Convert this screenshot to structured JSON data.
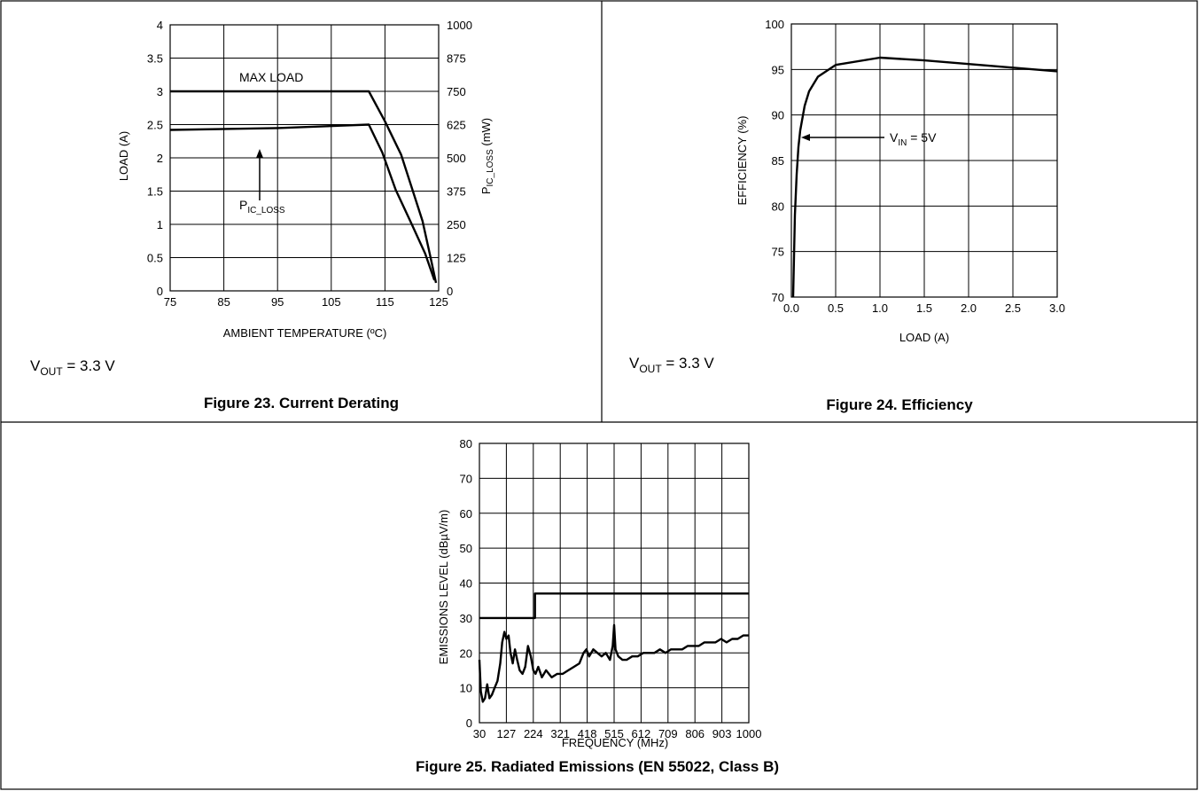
{
  "figures": {
    "fig23": {
      "caption": "Figure 23. Current Derating",
      "note_main": "V",
      "note_sub": "OUT",
      "note_rest": " = 3.3 V"
    },
    "fig24": {
      "caption": "Figure 24. Efficiency",
      "note_main": "V",
      "note_sub": "OUT",
      "note_rest": " = 3.3 V"
    },
    "fig25": {
      "caption": "Figure 25. Radiated Emissions (EN 55022, Class B)"
    }
  },
  "annotations": {
    "max_load": "MAX LOAD",
    "pic_main": "P",
    "pic_sub": "IC_LOSS",
    "vin_main": "V",
    "vin_sub": "IN",
    "vin_rest": " = 5V",
    "yr_main": "P",
    "yr_sub": "IC_LOSS",
    "yr_rest": " (mW)"
  },
  "chart_data": [
    {
      "id": "fig23",
      "type": "line",
      "xlabel": "AMBIENT TEMPERATURE (ºC)",
      "ylabel": "LOAD (A)",
      "xlim": [
        75,
        125
      ],
      "ylim": [
        0,
        4
      ],
      "y2lim": [
        0,
        1000
      ],
      "x_ticks": [
        "75",
        "85",
        "95",
        "105",
        "115",
        "125"
      ],
      "y_ticks": [
        "0",
        "0.5",
        "1",
        "1.5",
        "2",
        "2.5",
        "3",
        "3.5",
        "4"
      ],
      "y2_ticks": [
        "0",
        "125",
        "250",
        "375",
        "500",
        "625",
        "750",
        "875",
        "1000"
      ],
      "grid": true,
      "series": [
        {
          "name": "MAX LOAD",
          "axis": "left",
          "x": [
            75,
            112,
            115,
            118,
            120,
            122,
            123.5,
            124.5
          ],
          "y": [
            3.0,
            3.0,
            2.55,
            2.05,
            1.55,
            1.05,
            0.5,
            0.12
          ]
        },
        {
          "name": "P_IC_LOSS",
          "axis": "right",
          "x": [
            75,
            95,
            112,
            114.5,
            117,
            120,
            122.5,
            124.2
          ],
          "y": [
            605,
            612,
            625,
            520,
            380,
            250,
            140,
            40
          ]
        }
      ]
    },
    {
      "id": "fig24",
      "type": "line",
      "xlabel": "LOAD (A)",
      "ylabel": "EFFICIENCY (%)",
      "xlim": [
        0,
        3
      ],
      "ylim": [
        70,
        100
      ],
      "x_ticks": [
        "0.0",
        "0.5",
        "1.0",
        "1.5",
        "2.0",
        "2.5",
        "3.0"
      ],
      "y_ticks": [
        "70",
        "75",
        "80",
        "85",
        "90",
        "95",
        "100"
      ],
      "grid": true,
      "series": [
        {
          "name": "V_IN = 5V",
          "x": [
            0.02,
            0.04,
            0.06,
            0.08,
            0.1,
            0.15,
            0.2,
            0.3,
            0.5,
            1.0,
            1.5,
            2.0,
            2.5,
            3.0
          ],
          "y": [
            70,
            79,
            83.5,
            86.5,
            88.3,
            91,
            92.6,
            94.2,
            95.5,
            96.3,
            96.0,
            95.6,
            95.2,
            94.8
          ]
        }
      ]
    },
    {
      "id": "fig25",
      "type": "line",
      "xlabel": "FREQUENCY (MHz)",
      "ylabel": "EMISSIONS LEVEL (dBµV/m)",
      "xlim": [
        30,
        1000
      ],
      "ylim": [
        0,
        80
      ],
      "x_ticks": [
        "30",
        "127",
        "224",
        "321",
        "418",
        "515",
        "612",
        "709",
        "806",
        "903",
        "1000"
      ],
      "y_ticks": [
        "0",
        "10",
        "20",
        "30",
        "40",
        "50",
        "60",
        "70",
        "80"
      ],
      "grid": true,
      "series": [
        {
          "name": "EN 55022 Class B limit",
          "x": [
            30,
            230,
            230,
            1000
          ],
          "y": [
            30,
            30,
            37,
            37
          ]
        },
        {
          "name": "Emissions",
          "x": [
            30,
            35,
            42,
            50,
            58,
            66,
            75,
            85,
            95,
            105,
            112,
            120,
            127,
            135,
            142,
            150,
            158,
            166,
            175,
            185,
            195,
            205,
            215,
            224,
            232,
            242,
            255,
            270,
            290,
            310,
            330,
            350,
            370,
            390,
            405,
            415,
            425,
            440,
            455,
            470,
            485,
            500,
            510,
            515,
            520,
            530,
            545,
            560,
            580,
            600,
            620,
            640,
            660,
            680,
            700,
            720,
            740,
            760,
            780,
            800,
            820,
            840,
            860,
            880,
            900,
            920,
            940,
            960,
            980,
            1000
          ],
          "y": [
            18,
            9,
            6,
            7,
            11,
            7,
            8,
            10,
            12,
            17,
            23,
            26,
            24,
            25,
            20,
            17,
            21,
            18,
            15,
            14,
            16,
            22,
            19,
            15,
            14,
            16,
            13,
            15,
            13,
            14,
            14,
            15,
            16,
            17,
            20,
            21,
            19,
            21,
            20,
            19,
            20,
            18,
            22,
            28,
            21,
            19,
            18,
            18,
            19,
            19,
            20,
            20,
            20,
            21,
            20,
            21,
            21,
            21,
            22,
            22,
            22,
            23,
            23,
            23,
            24,
            23,
            24,
            24,
            25,
            25
          ]
        }
      ]
    }
  ]
}
